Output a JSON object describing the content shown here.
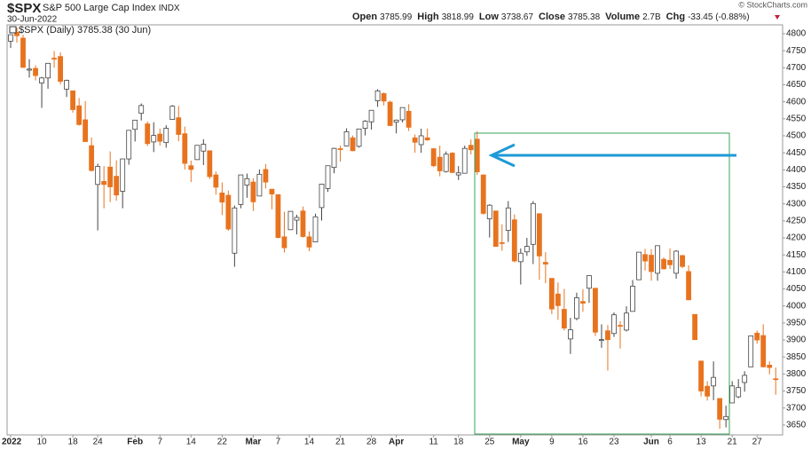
{
  "chart_data": {
    "type": "candlestick",
    "symbol": "$SPX",
    "name": "S&P 500 Large Cap Index",
    "exchange": "INDX",
    "date": "30-Jun-2022",
    "copyright": "© StockCharts.com",
    "quote": [
      {
        "label": "Open",
        "value": "3785.99"
      },
      {
        "label": "High",
        "value": "3818.99"
      },
      {
        "label": "Low",
        "value": "3738.67"
      },
      {
        "label": "Close",
        "value": "3785.38"
      },
      {
        "label": "Volume",
        "value": "2.7B"
      },
      {
        "label": "Chg",
        "value": "-33.45 (-0.88%)"
      }
    ],
    "legend": "$SPX (Daily) 3785.38 (30 Jun)",
    "up_color": "#ffffff",
    "down_color": "#e8731e",
    "box_color": "#3aa35b",
    "arrow_color": "#1e9ad6",
    "grid": false,
    "categories": [
      "2022",
      null,
      null,
      null,
      null,
      "10",
      null,
      null,
      null,
      null,
      "18",
      null,
      null,
      null,
      "24",
      null,
      null,
      null,
      null,
      null,
      "Feb",
      null,
      null,
      null,
      "7",
      null,
      null,
      null,
      null,
      "14",
      null,
      null,
      null,
      null,
      "22",
      null,
      null,
      null,
      null,
      "Mar",
      null,
      null,
      null,
      "7",
      null,
      null,
      null,
      null,
      "14",
      null,
      null,
      null,
      null,
      "21",
      null,
      null,
      null,
      null,
      "28",
      null,
      null,
      null,
      "Apr",
      null,
      null,
      null,
      null,
      null,
      "11",
      null,
      null,
      null,
      "18",
      null,
      null,
      null,
      null,
      "25",
      null,
      null,
      null,
      null,
      "May",
      null,
      null,
      null,
      null,
      "9",
      null,
      null,
      null,
      null,
      "16",
      null,
      null,
      null,
      null,
      "23",
      null,
      null,
      null,
      null,
      null,
      "Jun",
      null,
      null,
      "6",
      null,
      null,
      null,
      null,
      "13",
      null,
      null,
      null,
      null,
      "21",
      null,
      null,
      null,
      "27",
      null,
      null,
      null
    ],
    "open": [
      4778,
      4804,
      4787,
      4693,
      4698,
      4655,
      4670,
      4728,
      4733,
      4637,
      4632,
      4588,
      4547,
      4471,
      4357,
      4366,
      4408,
      4381,
      4337,
      4432,
      4519,
      4566,
      4535,
      4482,
      4505,
      4480,
      4548,
      4553,
      4506,
      4412,
      4430,
      4455,
      4456,
      4385,
      4332,
      4325,
      4155,
      4298,
      4355,
      4364,
      4323,
      4401,
      4343,
      4327,
      4203,
      4224,
      4252,
      4279,
      4203,
      4188,
      4289,
      4345,
      4407,
      4462,
      4470,
      4494,
      4469,
      4522,
      4541,
      4603,
      4624,
      4599,
      4540,
      4547,
      4572,
      4494,
      4474,
      4494,
      4462,
      4437,
      4395,
      4449,
      4385,
      4390,
      4472,
      4490,
      4385,
      4256,
      4279,
      4186,
      4222,
      4253,
      4130,
      4159,
      4181,
      4271,
      4128,
      4081,
      4035,
      3990,
      3903,
      3963,
      4013,
      4052,
      4052,
      3900,
      3927,
      3919,
      3943,
      3929,
      3984,
      4077,
      4151,
      4149,
      4096,
      4137,
      4134,
      4096,
      4148,
      4101,
      3975,
      3838,
      3764,
      3765,
      3728,
      3666,
      3715,
      3733,
      3775,
      3821,
      3920,
      3913,
      3826,
      3786
    ],
    "high": [
      4797,
      4818,
      4797,
      4725,
      4707,
      4673,
      4714,
      4749,
      4745,
      4665,
      4632,
      4611,
      4602,
      4495,
      4418,
      4411,
      4454,
      4428,
      4432,
      4516,
      4546,
      4595,
      4542,
      4540,
      4521,
      4531,
      4590,
      4588,
      4527,
      4427,
      4472,
      4490,
      4456,
      4395,
      4363,
      4339,
      4295,
      4385,
      4389,
      4375,
      4401,
      4417,
      4343,
      4327,
      4277,
      4277,
      4268,
      4292,
      4219,
      4271,
      4358,
      4412,
      4465,
      4471,
      4522,
      4501,
      4520,
      4546,
      4575,
      4637,
      4627,
      4603,
      4548,
      4583,
      4593,
      4504,
      4521,
      4521,
      4464,
      4471,
      4454,
      4452,
      4411,
      4471,
      4489,
      4513,
      4386,
      4299,
      4279,
      4240,
      4308,
      4269,
      4169,
      4200,
      4308,
      4271,
      4158,
      4081,
      4069,
      4050,
      3965,
      4039,
      4049,
      4089,
      4052,
      3946,
      3944,
      3981,
      3955,
      3999,
      4076,
      4158,
      4168,
      4167,
      4177,
      4143,
      4169,
      4164,
      4150,
      4119,
      3975,
      3838,
      3779,
      3837,
      3728,
      3707,
      3779,
      3785,
      3808,
      3913,
      3928,
      3946,
      3837,
      3819
    ],
    "low": [
      4758,
      4774,
      4700,
      4671,
      4663,
      4582,
      4638,
      4700,
      4651,
      4614,
      4568,
      4530,
      4483,
      4395,
      4222,
      4287,
      4305,
      4309,
      4287,
      4415,
      4483,
      4545,
      4470,
      4452,
      4471,
      4465,
      4548,
      4484,
      4401,
      4364,
      4429,
      4414,
      4373,
      4327,
      4267,
      4221,
      4115,
      4287,
      4318,
      4279,
      4323,
      4345,
      4284,
      4199,
      4157,
      4224,
      4210,
      4201,
      4161,
      4187,
      4251,
      4335,
      4390,
      4424,
      4469,
      4455,
      4465,
      4501,
      4518,
      4585,
      4589,
      4531,
      4507,
      4539,
      4514,
      4450,
      4450,
      4485,
      4408,
      4381,
      4392,
      4392,
      4370,
      4390,
      4445,
      4385,
      4268,
      4201,
      4175,
      4162,
      4188,
      4128,
      4063,
      4147,
      4123,
      4077,
      4067,
      3976,
      3959,
      3928,
      3859,
      3958,
      3983,
      4009,
      3912,
      3877,
      3810,
      3909,
      3875,
      3925,
      3984,
      4077,
      4104,
      4074,
      4074,
      4107,
      4109,
      4080,
      4111,
      4017,
      3900,
      3734,
      3722,
      3723,
      3639,
      3643,
      3715,
      3729,
      3748,
      3821,
      3889,
      3820,
      3799,
      3739
    ],
    "close": [
      4797,
      4794,
      4701,
      4696,
      4677,
      4670,
      4713,
      4726,
      4660,
      4663,
      4577,
      4533,
      4483,
      4398,
      4410,
      4357,
      4350,
      4326,
      4432,
      4516,
      4546,
      4589,
      4477,
      4501,
      4484,
      4522,
      4587,
      4504,
      4419,
      4401,
      4472,
      4475,
      4380,
      4349,
      4305,
      4226,
      4288,
      4385,
      4374,
      4306,
      4387,
      4364,
      4329,
      4201,
      4171,
      4278,
      4260,
      4204,
      4173,
      4262,
      4358,
      4412,
      4463,
      4461,
      4512,
      4456,
      4520,
      4543,
      4575,
      4632,
      4602,
      4530,
      4546,
      4583,
      4525,
      4481,
      4500,
      4488,
      4412,
      4397,
      4446,
      4392,
      4391,
      4463,
      4459,
      4394,
      4272,
      4296,
      4175,
      4184,
      4288,
      4132,
      4155,
      4175,
      4301,
      4147,
      4123,
      3991,
      4001,
      3935,
      3930,
      4024,
      4008,
      4089,
      3923,
      3901,
      3901,
      3974,
      3941,
      3979,
      4058,
      4158,
      4132,
      4101,
      4177,
      4109,
      4121,
      4161,
      4116,
      4018,
      3901,
      3750,
      3735,
      3790,
      3667,
      3675,
      3765,
      3760,
      3796,
      3912,
      3900,
      3821,
      3819,
      3785
    ],
    "ylim": [
      3621,
      4826
    ],
    "yticks": [
      3650,
      3700,
      3750,
      3800,
      3850,
      3900,
      3950,
      4000,
      4050,
      4100,
      4150,
      4200,
      4250,
      4300,
      4350,
      4400,
      4450,
      4500,
      4550,
      4600,
      4650,
      4700,
      4750,
      4800
    ]
  }
}
